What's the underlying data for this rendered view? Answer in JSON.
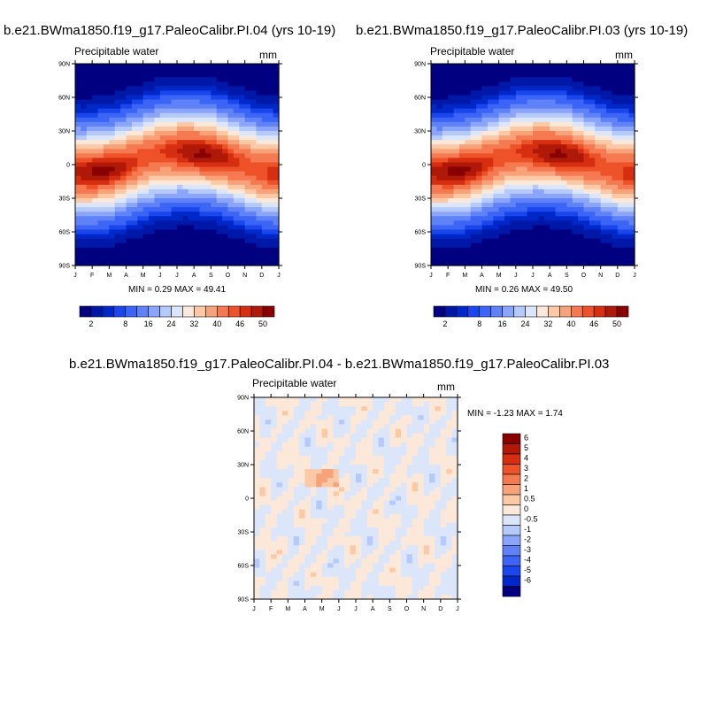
{
  "panels": [
    {
      "title": "b.e21.BWma1850.f19_g17.PaleoCalibr.PI.04 (yrs 10-19)",
      "subtitle": "Precipitable water",
      "units": "mm",
      "minmax": "MIN =   0.29 MAX =  49.41"
    },
    {
      "title": "b.e21.BWma1850.f19_g17.PaleoCalibr.PI.03 (yrs 10-19)",
      "subtitle": "Precipitable water",
      "units": "mm",
      "minmax": "MIN =   0.26 MAX =  49.50"
    },
    {
      "title": "b.e21.BWma1850.f19_g17.PaleoCalibr.PI.04 - b.e21.BWma1850.f19_g17.PaleoCalibr.PI.03",
      "subtitle": "Precipitable water",
      "units": "mm",
      "minmax": "MIN =  -1.23 MAX =   1.74"
    }
  ],
  "chart_data": [
    {
      "type": "heatmap",
      "title": "b.e21.BWma1850.f19_g17.PaleoCalibr.PI.04 (yrs 10-19)",
      "subtitle": "Precipitable water",
      "units": "mm",
      "x_tick_labels": [
        "J",
        "F",
        "M",
        "A",
        "M",
        "J",
        "J",
        "A",
        "S",
        "O",
        "N",
        "D",
        "J"
      ],
      "y_tick_labels": [
        "90N",
        "60N",
        "30N",
        "0",
        "30S",
        "60S",
        "90S"
      ],
      "y_range": [
        -90,
        90
      ],
      "min": 0.29,
      "max": 49.41,
      "colorbar_levels": [
        2,
        4,
        6,
        8,
        12,
        16,
        20,
        24,
        28,
        32,
        36,
        40,
        44,
        46,
        48,
        50
      ],
      "colorbar_tick_labels": [
        "2",
        "8",
        "16",
        "24",
        "32",
        "40",
        "46",
        "50"
      ],
      "colorbar_colors": [
        "#000080",
        "#0018a8",
        "#0028c8",
        "#1a46ee",
        "#3c64f5",
        "#5f82f8",
        "#8ba5fa",
        "#b5c9fb",
        "#dbe6fb",
        "#fce8d8",
        "#fbc9a6",
        "#f8a27a",
        "#f57a52",
        "#ee5228",
        "#d62e10",
        "#b01808",
        "#880000"
      ]
    },
    {
      "type": "heatmap",
      "title": "b.e21.BWma1850.f19_g17.PaleoCalibr.PI.03 (yrs 10-19)",
      "subtitle": "Precipitable water",
      "units": "mm",
      "x_tick_labels": [
        "J",
        "F",
        "M",
        "A",
        "M",
        "J",
        "J",
        "A",
        "S",
        "O",
        "N",
        "D",
        "J"
      ],
      "y_tick_labels": [
        "90N",
        "60N",
        "30N",
        "0",
        "30S",
        "60S",
        "90S"
      ],
      "y_range": [
        -90,
        90
      ],
      "min": 0.26,
      "max": 49.5,
      "colorbar_levels": [
        2,
        4,
        6,
        8,
        12,
        16,
        20,
        24,
        28,
        32,
        36,
        40,
        44,
        46,
        48,
        50
      ],
      "colorbar_tick_labels": [
        "2",
        "8",
        "16",
        "24",
        "32",
        "40",
        "46",
        "50"
      ],
      "colorbar_colors": [
        "#000080",
        "#0018a8",
        "#0028c8",
        "#1a46ee",
        "#3c64f5",
        "#5f82f8",
        "#8ba5fa",
        "#b5c9fb",
        "#dbe6fb",
        "#fce8d8",
        "#fbc9a6",
        "#f8a27a",
        "#f57a52",
        "#ee5228",
        "#d62e10",
        "#b01808",
        "#880000"
      ]
    },
    {
      "type": "heatmap",
      "title": "b.e21.BWma1850.f19_g17.PaleoCalibr.PI.04 - b.e21.BWma1850.f19_g17.PaleoCalibr.PI.03",
      "subtitle": "Precipitable water",
      "units": "mm",
      "x_tick_labels": [
        "J",
        "F",
        "M",
        "A",
        "M",
        "J",
        "J",
        "A",
        "S",
        "O",
        "N",
        "D",
        "J"
      ],
      "y_tick_labels": [
        "90N",
        "60N",
        "30N",
        "0",
        "30S",
        "60S",
        "90S"
      ],
      "y_range": [
        -90,
        90
      ],
      "min": -1.23,
      "max": 1.74,
      "colorbar_tick_labels": [
        "6",
        "5",
        "4",
        "3",
        "2",
        "1",
        "0.5",
        "0",
        "-0.5",
        "-1",
        "-2",
        "-3",
        "-4",
        "-5",
        "-6"
      ],
      "colorbar_colors": [
        "#880000",
        "#b01808",
        "#d62e10",
        "#ee5228",
        "#f57a52",
        "#f8a27a",
        "#fbc9a6",
        "#fce8d8",
        "#dbe6fb",
        "#b5c9fb",
        "#8ba5fa",
        "#5f82f8",
        "#3c64f5",
        "#1a46ee",
        "#0028c8",
        "#000080"
      ]
    }
  ]
}
